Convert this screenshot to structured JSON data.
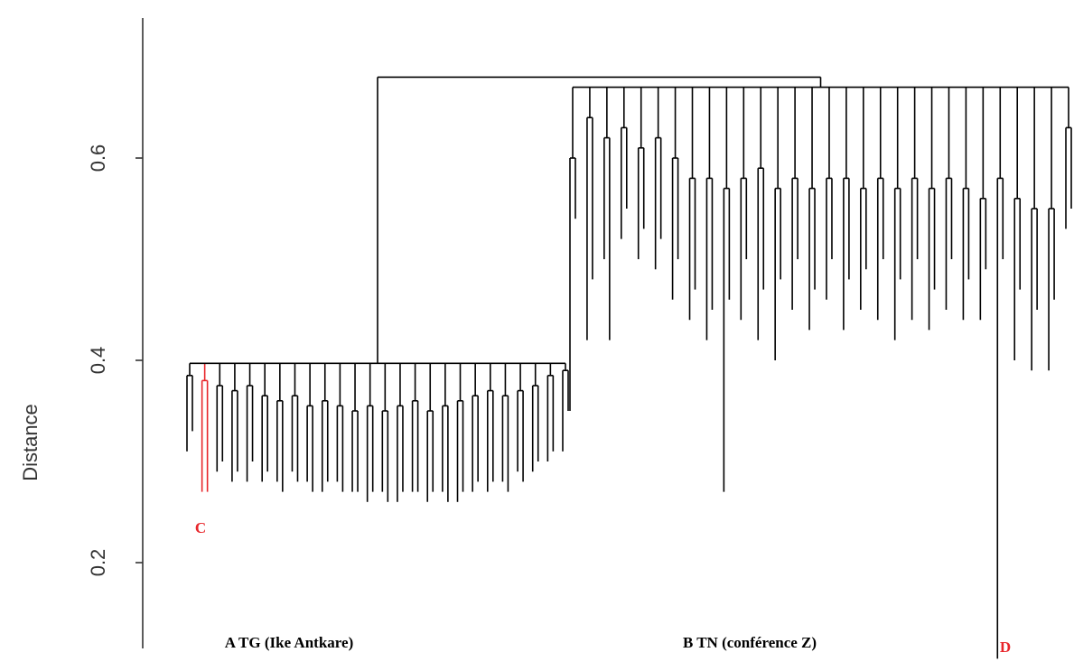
{
  "chart_data": {
    "type": "dendrogram",
    "y_label": "Distance",
    "ylim": [
      0.1,
      0.75
    ],
    "yticks": [
      0.2,
      0.4,
      0.6
    ],
    "color": "#000000",
    "root": 0.68,
    "clusters": [
      {
        "merge": 0.397,
        "highlight_pair": 1,
        "highlight_color": "#e8262b",
        "pairs": [
          [
            0.31,
            0.33,
            0.385
          ],
          [
            0.27,
            0.27,
            0.38
          ],
          [
            0.29,
            0.3,
            0.375
          ],
          [
            0.28,
            0.29,
            0.37
          ],
          [
            0.28,
            0.3,
            0.375
          ],
          [
            0.28,
            0.29,
            0.365
          ],
          [
            0.28,
            0.27,
            0.36
          ],
          [
            0.29,
            0.28,
            0.365
          ],
          [
            0.28,
            0.27,
            0.355
          ],
          [
            0.27,
            0.28,
            0.36
          ],
          [
            0.28,
            0.27,
            0.355
          ],
          [
            0.27,
            0.27,
            0.35
          ],
          [
            0.26,
            0.27,
            0.355
          ],
          [
            0.27,
            0.26,
            0.35
          ],
          [
            0.26,
            0.27,
            0.355
          ],
          [
            0.27,
            0.27,
            0.36
          ],
          [
            0.26,
            0.27,
            0.35
          ],
          [
            0.27,
            0.26,
            0.355
          ],
          [
            0.26,
            0.27,
            0.36
          ],
          [
            0.27,
            0.28,
            0.365
          ],
          [
            0.27,
            0.28,
            0.37
          ],
          [
            0.28,
            0.27,
            0.365
          ],
          [
            0.29,
            0.28,
            0.37
          ],
          [
            0.29,
            0.3,
            0.375
          ],
          [
            0.3,
            0.31,
            0.385
          ],
          [
            0.31,
            0.35,
            0.39
          ]
        ]
      },
      {
        "merge": 0.67,
        "pairs": [
          [
            0.35,
            0.54,
            0.6
          ],
          [
            0.42,
            0.48,
            0.64
          ],
          [
            0.5,
            0.42,
            0.62
          ],
          [
            0.52,
            0.55,
            0.63
          ],
          [
            0.5,
            0.53,
            0.61
          ],
          [
            0.49,
            0.52,
            0.62
          ],
          [
            0.46,
            0.5,
            0.6
          ],
          [
            0.44,
            0.47,
            0.58
          ],
          [
            0.42,
            0.45,
            0.58
          ],
          [
            0.27,
            0.46,
            0.57
          ],
          [
            0.44,
            0.5,
            0.58
          ],
          [
            0.42,
            0.47,
            0.59
          ],
          [
            0.4,
            0.48,
            0.57
          ],
          [
            0.45,
            0.5,
            0.58
          ],
          [
            0.43,
            0.47,
            0.57
          ],
          [
            0.46,
            0.5,
            0.58
          ],
          [
            0.43,
            0.48,
            0.58
          ],
          [
            0.45,
            0.49,
            0.57
          ],
          [
            0.44,
            0.5,
            0.58
          ],
          [
            0.42,
            0.48,
            0.57
          ],
          [
            0.44,
            0.5,
            0.58
          ],
          [
            0.43,
            0.47,
            0.57
          ],
          [
            0.45,
            0.5,
            0.58
          ],
          [
            0.44,
            0.48,
            0.57
          ],
          [
            0.44,
            0.49,
            0.56
          ],
          [
            0.105,
            0.5,
            0.58
          ],
          [
            0.4,
            0.47,
            0.56
          ],
          [
            0.39,
            0.45,
            0.55
          ],
          [
            0.39,
            0.46,
            0.55
          ],
          [
            0.53,
            0.55,
            0.63
          ]
        ]
      }
    ],
    "annotations": [
      {
        "text": "A TG (Ike Antkare)",
        "color": "#000000"
      },
      {
        "text": "B TN (conférence Z)",
        "color": "#000000"
      },
      {
        "text": "C",
        "color": "#e8262b"
      },
      {
        "text": "D",
        "color": "#e8262b"
      }
    ]
  }
}
